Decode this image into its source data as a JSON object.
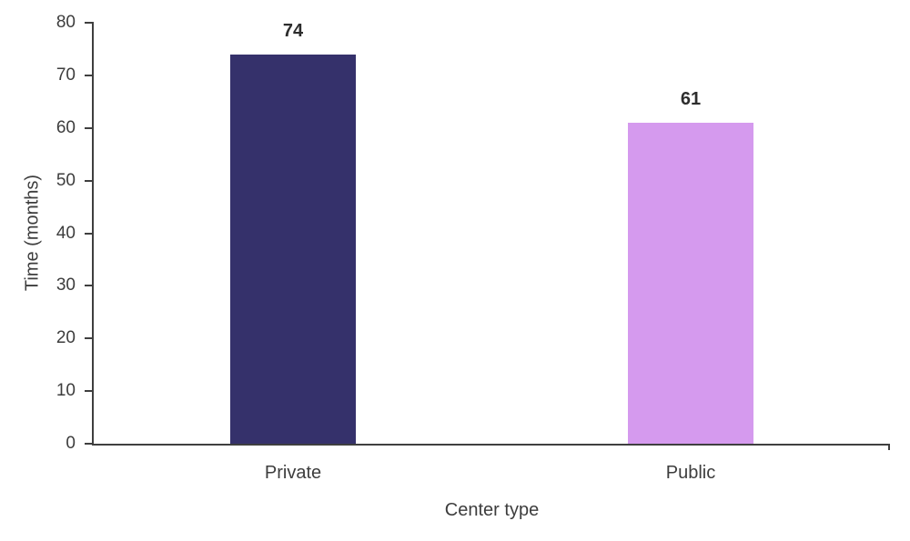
{
  "chart_data": {
    "type": "bar",
    "xlabel": "Center type",
    "ylabel": "Time (months)",
    "categories": [
      "Private",
      "Public"
    ],
    "values": [
      74,
      61
    ],
    "value_labels": [
      "74",
      "61"
    ],
    "bar_colors": [
      "#35316b",
      "#d59aee"
    ],
    "ylim": [
      0,
      80
    ],
    "yticks": [
      0,
      10,
      20,
      30,
      40,
      50,
      60,
      70,
      80
    ],
    "grid": false,
    "legend": "none"
  },
  "colors": {
    "axis": "#3f3f3f",
    "tick_label": "#3d3d3d",
    "value_label": "#2d2d2d",
    "background": "#ffffff"
  }
}
